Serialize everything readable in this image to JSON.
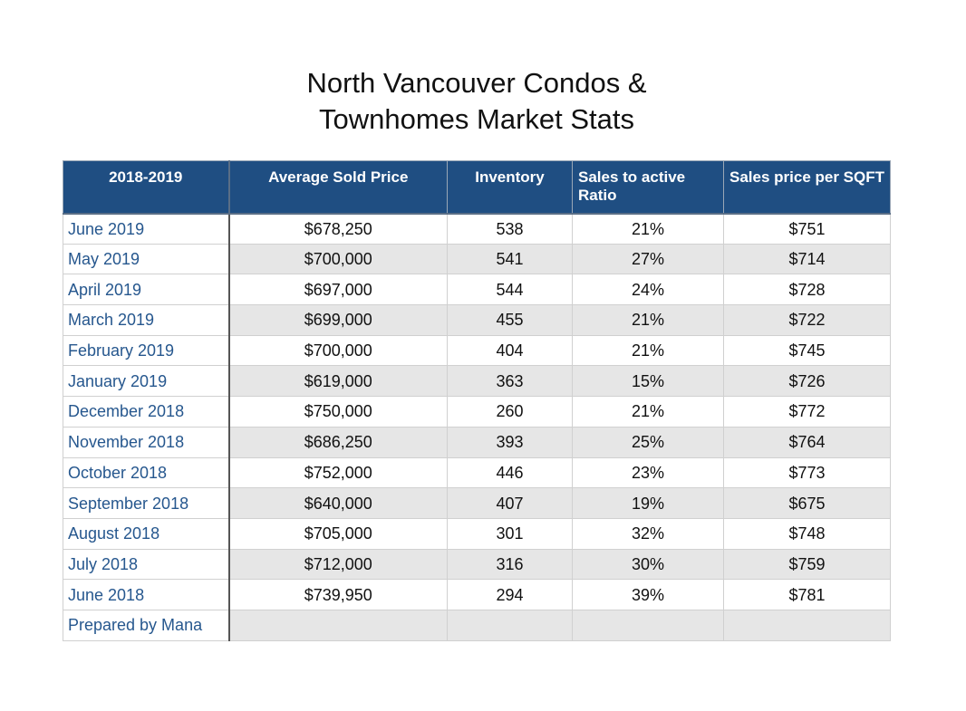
{
  "title": {
    "line1": "North Vancouver Condos &",
    "line2": "Townhomes Market Stats"
  },
  "table": {
    "headers": [
      "2018-2019",
      "Average Sold Price",
      "Inventory",
      "Sales to active Ratio",
      "Sales price per SQFT"
    ],
    "rows": [
      {
        "month": "June 2019",
        "price": "$678,250",
        "inventory": "538",
        "ratio": "21%",
        "sqft": "$751"
      },
      {
        "month": "May 2019",
        "price": "$700,000",
        "inventory": "541",
        "ratio": "27%",
        "sqft": "$714"
      },
      {
        "month": "April 2019",
        "price": "$697,000",
        "inventory": "544",
        "ratio": "24%",
        "sqft": "$728"
      },
      {
        "month": "March 2019",
        "price": "$699,000",
        "inventory": "455",
        "ratio": "21%",
        "sqft": "$722"
      },
      {
        "month": "February 2019",
        "price": "$700,000",
        "inventory": "404",
        "ratio": "21%",
        "sqft": "$745"
      },
      {
        "month": "January 2019",
        "price": "$619,000",
        "inventory": "363",
        "ratio": "15%",
        "sqft": "$726"
      },
      {
        "month": "December 2018",
        "price": "$750,000",
        "inventory": "260",
        "ratio": "21%",
        "sqft": "$772"
      },
      {
        "month": "November 2018",
        "price": "$686,250",
        "inventory": "393",
        "ratio": "25%",
        "sqft": "$764"
      },
      {
        "month": "October 2018",
        "price": "$752,000",
        "inventory": "446",
        "ratio": "23%",
        "sqft": "$773"
      },
      {
        "month": "September 2018",
        "price": "$640,000",
        "inventory": "407",
        "ratio": "19%",
        "sqft": "$675"
      },
      {
        "month": "August 2018",
        "price": "$705,000",
        "inventory": "301",
        "ratio": "32%",
        "sqft": "$748"
      },
      {
        "month": "July 2018",
        "price": "$712,000",
        "inventory": "316",
        "ratio": "30%",
        "sqft": "$759"
      },
      {
        "month": "June 2018",
        "price": "$739,950",
        "inventory": "294",
        "ratio": "39%",
        "sqft": "$781"
      },
      {
        "month": "Prepared by Mana",
        "price": "",
        "inventory": "",
        "ratio": "",
        "sqft": ""
      }
    ]
  },
  "colors": {
    "header_bg": "#1f4e82",
    "month_text": "#26578e",
    "alt_row_bg": "#e6e6e6"
  }
}
